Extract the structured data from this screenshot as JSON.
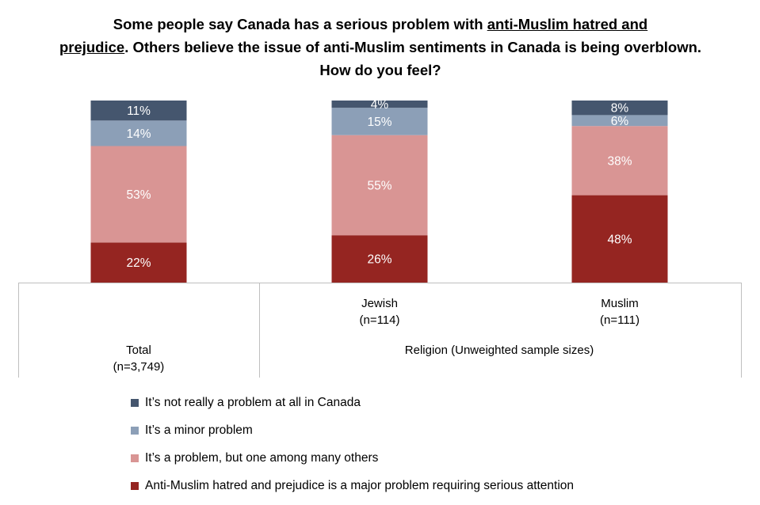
{
  "title": {
    "part1": "Some people say Canada has a serious problem with ",
    "underlined1": "anti-Muslim hatred and",
    "underlined2": "prejudice",
    "part2": ". Others believe the issue of anti-Muslim sentiments in Canada is being overblown. How do you feel?"
  },
  "chart_data": {
    "type": "bar",
    "stacked": true,
    "categories": [
      {
        "label": "Total",
        "n": "(n=3,749)"
      },
      {
        "label": "Jewish",
        "n": "(n=114)"
      },
      {
        "label": "Muslim",
        "n": "(n=111)"
      }
    ],
    "group_label": "Religion (Unweighted sample sizes)",
    "series": [
      {
        "name": "Anti-Muslim hatred and prejudice is a major problem requiring serious attention",
        "color": "#952521",
        "values": [
          22,
          26,
          48
        ]
      },
      {
        "name": "It’s a problem, but one among many others",
        "color": "#D99594",
        "values": [
          53,
          55,
          38
        ]
      },
      {
        "name": "It’s a minor problem",
        "color": "#8C9FB7",
        "values": [
          14,
          15,
          6
        ]
      },
      {
        "name": "It’s not really a problem at all in Canada",
        "color": "#45566E",
        "values": [
          11,
          4,
          8
        ]
      }
    ],
    "value_suffix": "%",
    "ylim": [
      0,
      100
    ],
    "legend_position": "bottom"
  }
}
